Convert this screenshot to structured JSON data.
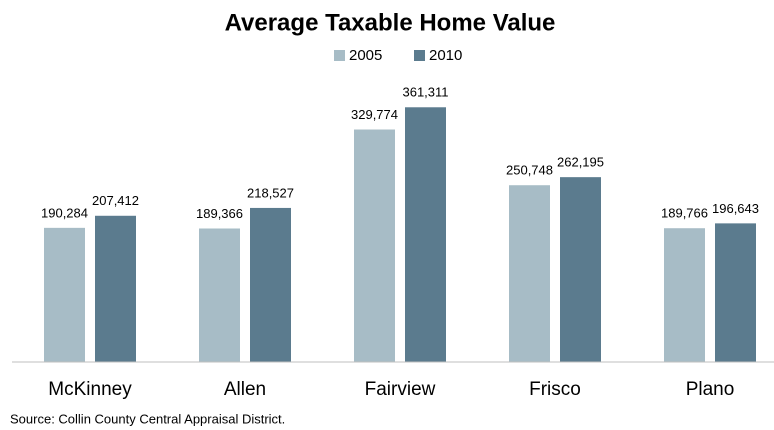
{
  "chart_data": {
    "type": "bar",
    "title": "Average Taxable Home Value",
    "categories": [
      "McKinney",
      "Allen",
      "Fairview",
      "Frisco",
      "Plano"
    ],
    "series": [
      {
        "name": "2005",
        "color": "#a7bcc6",
        "values": [
          190284,
          189366,
          329774,
          250748,
          189766
        ],
        "value_labels": [
          "190,284",
          "189,366",
          "329,774",
          "250,748",
          "189,766"
        ]
      },
      {
        "name": "2010",
        "color": "#5b7b8e",
        "values": [
          207412,
          218527,
          361311,
          262195,
          196643
        ],
        "value_labels": [
          "207,412",
          "218,527",
          "361,311",
          "262,195",
          "196,643"
        ]
      }
    ],
    "ylim": [
      0,
      400000
    ],
    "source": "Source: Collin County Central Appraisal District."
  }
}
